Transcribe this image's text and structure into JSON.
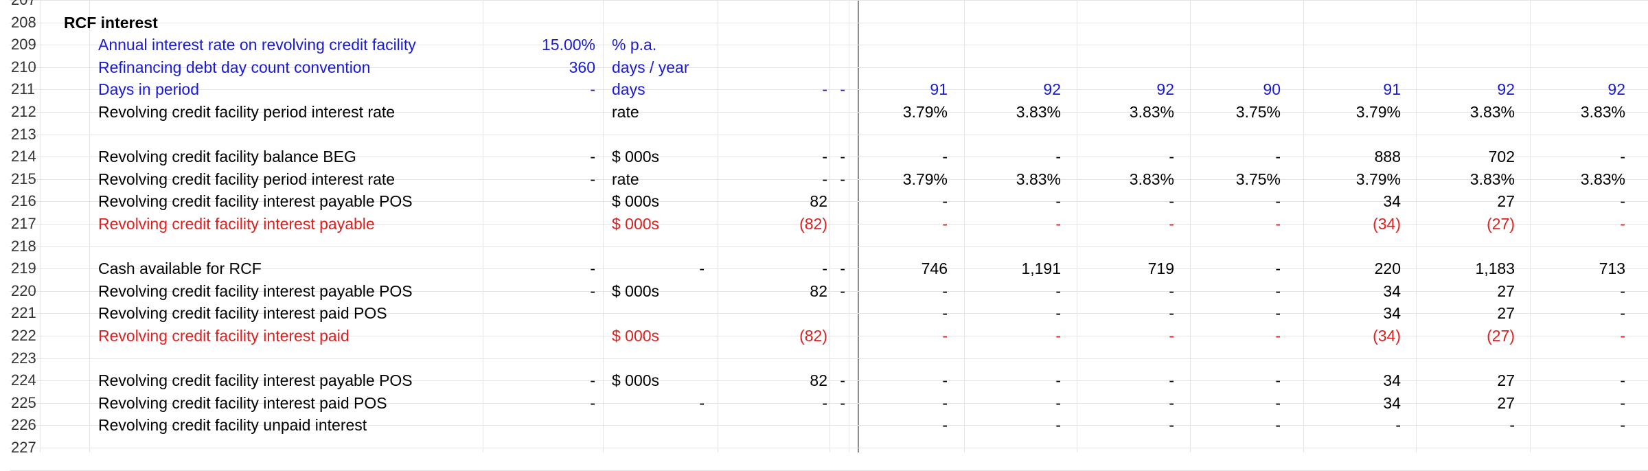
{
  "sheet": {
    "rows": [
      {
        "num": "207",
        "label": "",
        "style": "black",
        "b": "",
        "unit": "",
        "c": "",
        "d": "",
        "e": "",
        "per": []
      },
      {
        "num": "208",
        "label": "RCF interest",
        "style": "header",
        "b": "",
        "unit": "",
        "c": "",
        "d": "",
        "e": "",
        "per": []
      },
      {
        "num": "209",
        "label": "Annual interest rate on revolving credit facility",
        "style": "blue",
        "b": "15.00%",
        "unit": "% p.a.",
        "c": "",
        "d": "",
        "e": "",
        "per": []
      },
      {
        "num": "210",
        "label": "Refinancing debt day count convention",
        "style": "blue",
        "b": "360",
        "unit": "days / year",
        "c": "",
        "d": "",
        "e": "",
        "per": []
      },
      {
        "num": "211",
        "label": "Days in period",
        "style": "blue",
        "b": "-",
        "unit": "days",
        "c": "",
        "d": "-",
        "e": "-",
        "per": [
          "91",
          "92",
          "92",
          "90",
          "91",
          "92",
          "92"
        ]
      },
      {
        "num": "212",
        "label": "Revolving credit facility period interest rate",
        "style": "black",
        "b": "",
        "unit": "rate",
        "c": "",
        "d": "",
        "e": "",
        "per": [
          "3.79%",
          "3.83%",
          "3.83%",
          "3.75%",
          "3.79%",
          "3.83%",
          "3.83%"
        ]
      },
      {
        "num": "213",
        "label": "",
        "style": "black",
        "b": "",
        "unit": "",
        "c": "",
        "d": "",
        "e": "",
        "per": []
      },
      {
        "num": "214",
        "label": "Revolving credit facility balance BEG",
        "style": "black",
        "b": "-",
        "unit": "$ 000s",
        "c": "",
        "d": "-",
        "e": "-",
        "per": [
          "-",
          "-",
          "-",
          "-",
          "888",
          "702",
          "-"
        ]
      },
      {
        "num": "215",
        "label": "Revolving credit facility period interest rate",
        "style": "black",
        "b": "-",
        "unit": "rate",
        "c": "",
        "d": "-",
        "e": "-",
        "per": [
          "3.79%",
          "3.83%",
          "3.83%",
          "3.75%",
          "3.79%",
          "3.83%",
          "3.83%"
        ]
      },
      {
        "num": "216",
        "label": "Revolving credit facility interest payable POS",
        "style": "black",
        "b": "",
        "unit": "$ 000s",
        "c": "",
        "d": "82",
        "e": "",
        "per": [
          "-",
          "-",
          "-",
          "-",
          "34",
          "27",
          "-"
        ]
      },
      {
        "num": "217",
        "label": "Revolving credit facility interest payable",
        "style": "red",
        "b": "",
        "unit": "$ 000s",
        "c": "",
        "d": "(82)",
        "e": "",
        "per": [
          "-",
          "-",
          "-",
          "-",
          "(34)",
          "(27)",
          "-"
        ]
      },
      {
        "num": "218",
        "label": "",
        "style": "black",
        "b": "",
        "unit": "",
        "c": "",
        "d": "",
        "e": "",
        "per": []
      },
      {
        "num": "219",
        "label": "Cash available for RCF",
        "style": "black",
        "b": "-",
        "unit": "",
        "c": "-",
        "d": "-",
        "e": "-",
        "per": [
          "746",
          "1,191",
          "719",
          "-",
          "220",
          "1,183",
          "713"
        ]
      },
      {
        "num": "220",
        "label": "Revolving credit facility interest payable POS",
        "style": "black",
        "b": "-",
        "unit": "$ 000s",
        "c": "",
        "d": "82",
        "e": "-",
        "per": [
          "-",
          "-",
          "-",
          "-",
          "34",
          "27",
          "-"
        ]
      },
      {
        "num": "221",
        "label": "Revolving credit facility interest paid POS",
        "style": "black",
        "b": "",
        "unit": "",
        "c": "",
        "d": "",
        "e": "",
        "per": [
          "-",
          "-",
          "-",
          "-",
          "34",
          "27",
          "-"
        ]
      },
      {
        "num": "222",
        "label": "Revolving credit facility interest paid",
        "style": "red",
        "b": "",
        "unit": "$ 000s",
        "c": "",
        "d": "(82)",
        "e": "",
        "per": [
          "-",
          "-",
          "-",
          "-",
          "(34)",
          "(27)",
          "-"
        ]
      },
      {
        "num": "223",
        "label": "",
        "style": "black",
        "b": "",
        "unit": "",
        "c": "",
        "d": "",
        "e": "",
        "per": []
      },
      {
        "num": "224",
        "label": "Revolving credit facility interest payable POS",
        "style": "black",
        "b": "-",
        "unit": "$ 000s",
        "c": "",
        "d": "82",
        "e": "-",
        "per": [
          "-",
          "-",
          "-",
          "-",
          "34",
          "27",
          "-"
        ]
      },
      {
        "num": "225",
        "label": "Revolving credit facility interest paid POS",
        "style": "black",
        "b": "-",
        "unit": "",
        "c": "-",
        "d": "-",
        "e": "-",
        "per": [
          "-",
          "-",
          "-",
          "-",
          "34",
          "27",
          "-"
        ]
      },
      {
        "num": "226",
        "label": "Revolving credit facility unpaid interest",
        "style": "black",
        "b": "",
        "unit": "",
        "c": "",
        "d": "",
        "e": "",
        "per": [
          "-",
          "-",
          "-",
          "-",
          "-",
          "-",
          "-"
        ]
      },
      {
        "num": "227",
        "label": "",
        "style": "black",
        "b": "",
        "unit": "",
        "c": "",
        "d": "",
        "e": "",
        "per": []
      }
    ]
  },
  "colors": {
    "blue": "#1a1ad6",
    "red": "#dd2020",
    "black": "#000000",
    "header": "#000000"
  }
}
